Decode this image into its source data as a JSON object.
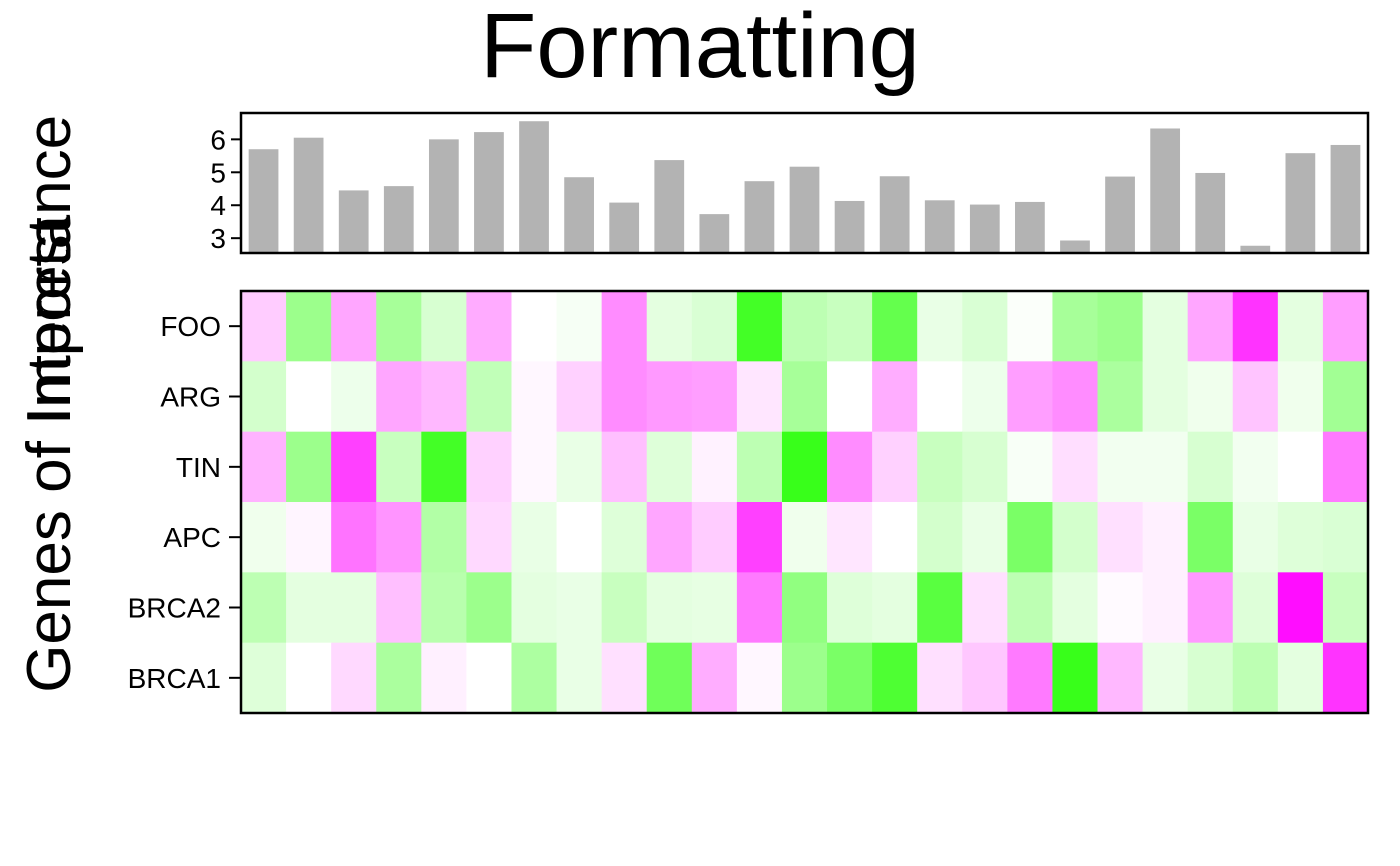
{
  "chart_data": [
    {
      "type": "bar",
      "panel": "top-annotation",
      "values": [
        5.7,
        6.05,
        4.45,
        4.58,
        6.0,
        6.22,
        6.55,
        4.85,
        4.08,
        5.37,
        3.73,
        4.73,
        5.17,
        4.13,
        4.88,
        4.15,
        4.02,
        4.1,
        2.93,
        4.87,
        6.33,
        4.98,
        2.77,
        5.58,
        5.83
      ],
      "ylim": [
        2.55,
        6.8
      ],
      "yticks": [
        "3",
        "4",
        "5",
        "6"
      ],
      "ytick_values": [
        3,
        4,
        5,
        6
      ],
      "bar_color": "#b3b3b3"
    },
    {
      "type": "heatmap",
      "title": "Formatting",
      "ylabel_lines": [
        "Genes of Interest",
        "Importance"
      ],
      "rows": [
        "FOO",
        "ARG",
        "TIN",
        "APC",
        "BRCA2",
        "BRCA1"
      ],
      "n_cols": 25,
      "scale": {
        "min": -1,
        "max": 1,
        "negative_color": "#ff00ff",
        "mid_color": "#ffffff",
        "positive_color": "#22ff00"
      },
      "values": [
        [
          -0.2,
          0.45,
          -0.35,
          0.4,
          0.18,
          -0.33,
          0.0,
          0.04,
          -0.45,
          0.12,
          0.17,
          0.85,
          0.3,
          0.25,
          0.7,
          0.1,
          0.17,
          0.02,
          0.4,
          0.45,
          0.12,
          -0.35,
          -0.8,
          0.12,
          -0.38
        ],
        [
          0.2,
          0.0,
          0.08,
          -0.35,
          -0.28,
          0.28,
          -0.03,
          -0.18,
          -0.45,
          -0.4,
          -0.38,
          -0.1,
          0.4,
          0.0,
          -0.32,
          0.0,
          0.08,
          -0.38,
          -0.45,
          0.38,
          0.12,
          0.07,
          -0.23,
          0.07,
          0.42
        ],
        [
          -0.3,
          0.45,
          -0.75,
          0.25,
          0.85,
          -0.18,
          -0.03,
          0.1,
          -0.25,
          0.15,
          -0.05,
          0.3,
          0.9,
          -0.45,
          -0.18,
          0.25,
          0.18,
          0.03,
          -0.13,
          0.06,
          0.06,
          0.18,
          0.06,
          0.0,
          -0.52
        ],
        [
          0.07,
          -0.04,
          -0.55,
          -0.42,
          0.35,
          -0.15,
          0.1,
          0.0,
          0.15,
          -0.35,
          -0.2,
          -0.75,
          0.07,
          -0.1,
          0.0,
          0.2,
          0.1,
          0.6,
          0.2,
          -0.12,
          -0.06,
          0.6,
          0.1,
          0.15,
          0.17
        ],
        [
          0.3,
          0.12,
          0.12,
          -0.25,
          0.32,
          0.45,
          0.12,
          0.1,
          0.25,
          0.12,
          0.11,
          -0.52,
          0.5,
          0.15,
          0.12,
          0.75,
          -0.12,
          0.3,
          0.12,
          -0.02,
          -0.06,
          -0.4,
          0.15,
          -0.95,
          0.25
        ],
        [
          0.15,
          0.0,
          -0.15,
          0.38,
          -0.06,
          0.0,
          0.37,
          0.1,
          -0.12,
          0.65,
          -0.32,
          -0.03,
          0.45,
          0.6,
          0.8,
          -0.12,
          -0.22,
          -0.52,
          0.9,
          -0.28,
          0.1,
          0.18,
          0.3,
          0.12,
          -0.8
        ]
      ]
    }
  ]
}
